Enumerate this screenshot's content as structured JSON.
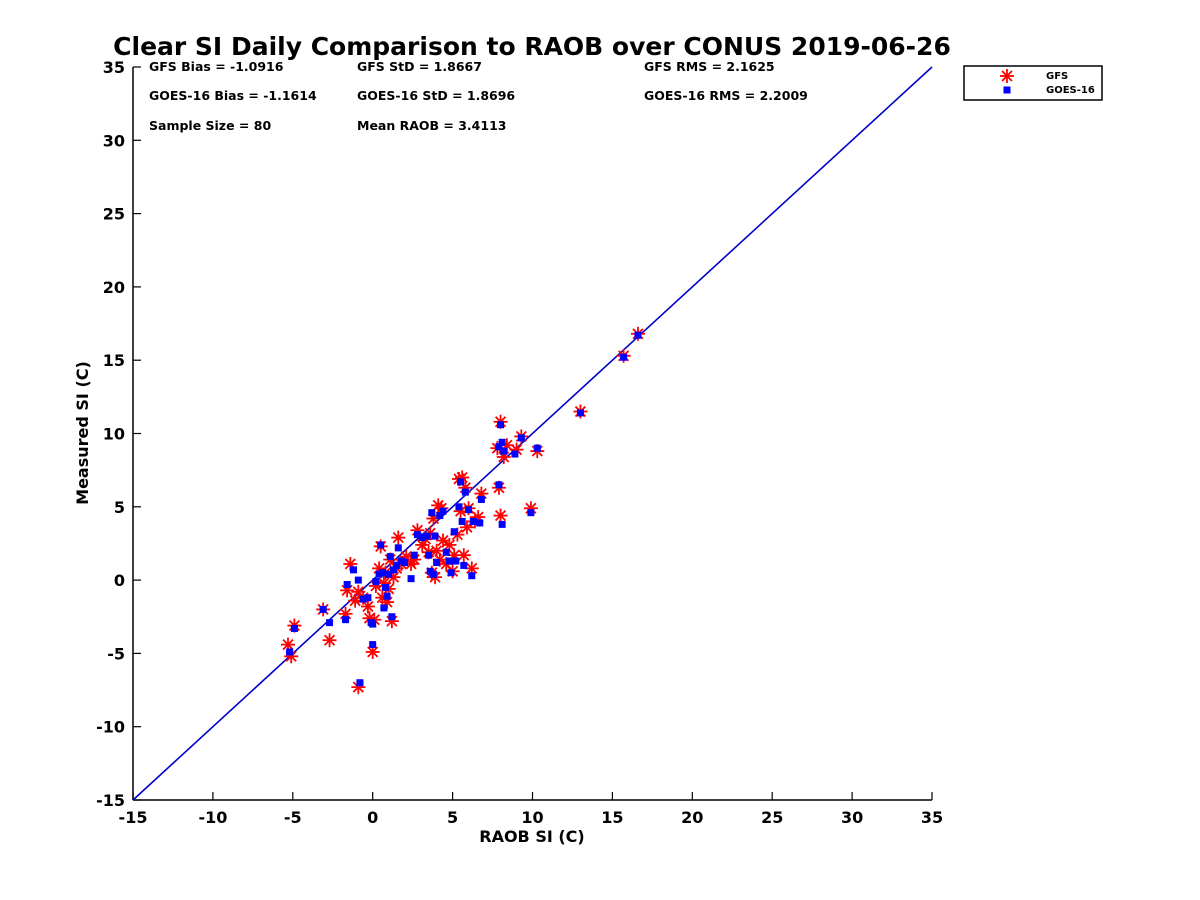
{
  "chart_data": {
    "type": "scatter",
    "title": "Clear SI Daily Comparison to RAOB over CONUS 2019-06-26",
    "xlabel": "RAOB SI (C)",
    "ylabel": "Measured SI (C)",
    "xlim": [
      -15,
      35
    ],
    "ylim": [
      -15,
      35
    ],
    "xticks": [
      -15,
      -10,
      -5,
      0,
      5,
      10,
      15,
      20,
      25,
      30,
      35
    ],
    "yticks": [
      -15,
      -10,
      -5,
      0,
      5,
      10,
      15,
      20,
      25,
      30,
      35
    ],
    "reference_line": {
      "from": [
        -15,
        -15
      ],
      "to": [
        35,
        35
      ],
      "color": "#0000cc"
    },
    "legend": {
      "placement": "outside-top-right",
      "entries": [
        "GFS",
        "GOES-16"
      ]
    },
    "stats": {
      "gfs_bias": "GFS Bias = -1.0916",
      "gfs_std": "GFS StD = 1.8667",
      "gfs_rms": "GFS RMS = 2.1625",
      "goes_bias": "GOES-16 Bias = -1.1614",
      "goes_std": "GOES-16 StD = 1.8696",
      "goes_rms": "GOES-16 RMS = 2.2009",
      "sample_size": "Sample Size = 80",
      "mean_raob": "Mean RAOB = 3.4113"
    },
    "series": [
      {
        "name": "GFS",
        "marker": "asterisk",
        "color": "#ff0000",
        "points": [
          [
            -5.3,
            -4.4
          ],
          [
            -5.1,
            -5.2
          ],
          [
            -4.9,
            -3.1
          ],
          [
            -3.1,
            -2.0
          ],
          [
            -2.7,
            -4.1
          ],
          [
            -1.7,
            -2.3
          ],
          [
            -1.6,
            -0.7
          ],
          [
            -1.4,
            1.1
          ],
          [
            -1.1,
            -1.4
          ],
          [
            -0.9,
            -0.8
          ],
          [
            -0.9,
            -7.3
          ],
          [
            -0.6,
            -1.2
          ],
          [
            -0.3,
            -1.8
          ],
          [
            -0.2,
            -2.6
          ],
          [
            0.0,
            -4.9
          ],
          [
            0.1,
            -2.7
          ],
          [
            0.2,
            -0.4
          ],
          [
            0.4,
            0.8
          ],
          [
            0.5,
            2.3
          ],
          [
            0.6,
            -1.2
          ],
          [
            0.7,
            -0.2
          ],
          [
            0.8,
            0.5
          ],
          [
            0.9,
            -1.5
          ],
          [
            1.0,
            -0.6
          ],
          [
            1.1,
            1.4
          ],
          [
            1.2,
            -2.8
          ],
          [
            1.3,
            0.2
          ],
          [
            1.5,
            0.8
          ],
          [
            1.6,
            2.9
          ],
          [
            1.8,
            1.1
          ],
          [
            2.1,
            1.6
          ],
          [
            2.4,
            1.1
          ],
          [
            2.6,
            1.4
          ],
          [
            2.8,
            3.4
          ],
          [
            3.1,
            2.4
          ],
          [
            3.3,
            2.8
          ],
          [
            3.5,
            1.9
          ],
          [
            3.6,
            3.2
          ],
          [
            3.7,
            0.5
          ],
          [
            3.8,
            4.2
          ],
          [
            3.9,
            0.2
          ],
          [
            4.0,
            2.0
          ],
          [
            4.1,
            5.1
          ],
          [
            4.2,
            1.4
          ],
          [
            4.3,
            4.9
          ],
          [
            4.4,
            2.7
          ],
          [
            4.6,
            1.1
          ],
          [
            4.8,
            2.4
          ],
          [
            5.0,
            0.6
          ],
          [
            5.1,
            1.7
          ],
          [
            5.3,
            3.1
          ],
          [
            5.4,
            6.9
          ],
          [
            5.5,
            4.7
          ],
          [
            5.6,
            7.0
          ],
          [
            5.7,
            1.7
          ],
          [
            5.8,
            6.3
          ],
          [
            5.9,
            3.6
          ],
          [
            6.0,
            4.9
          ],
          [
            6.2,
            0.8
          ],
          [
            6.4,
            4.0
          ],
          [
            6.6,
            4.3
          ],
          [
            6.8,
            5.9
          ],
          [
            7.8,
            9.0
          ],
          [
            7.9,
            6.3
          ],
          [
            8.0,
            4.4
          ],
          [
            8.0,
            10.8
          ],
          [
            8.2,
            8.4
          ],
          [
            8.4,
            9.2
          ],
          [
            9.0,
            8.9
          ],
          [
            9.3,
            9.8
          ],
          [
            9.9,
            4.9
          ],
          [
            10.3,
            8.8
          ],
          [
            13.0,
            11.5
          ],
          [
            15.7,
            15.3
          ],
          [
            16.6,
            16.8
          ]
        ]
      },
      {
        "name": "GOES-16",
        "marker": "square",
        "color": "#0000ff",
        "points": [
          [
            -5.2,
            -4.9
          ],
          [
            -4.9,
            -3.3
          ],
          [
            -3.1,
            -2.0
          ],
          [
            -2.7,
            -2.9
          ],
          [
            -1.7,
            -2.7
          ],
          [
            -1.6,
            -0.3
          ],
          [
            -1.2,
            0.7
          ],
          [
            -0.9,
            0.0
          ],
          [
            -0.8,
            -7.0
          ],
          [
            -0.6,
            -1.3
          ],
          [
            -0.3,
            -1.2
          ],
          [
            -0.1,
            -2.9
          ],
          [
            0.0,
            -4.4
          ],
          [
            0.0,
            -3.0
          ],
          [
            0.2,
            -0.1
          ],
          [
            0.4,
            0.4
          ],
          [
            0.5,
            2.4
          ],
          [
            0.6,
            0.5
          ],
          [
            0.7,
            -1.9
          ],
          [
            0.8,
            -0.5
          ],
          [
            0.9,
            -1.1
          ],
          [
            1.0,
            0.4
          ],
          [
            1.1,
            1.6
          ],
          [
            1.2,
            -2.5
          ],
          [
            1.3,
            0.7
          ],
          [
            1.5,
            1.0
          ],
          [
            1.6,
            2.2
          ],
          [
            1.8,
            1.3
          ],
          [
            2.0,
            1.2
          ],
          [
            2.4,
            0.1
          ],
          [
            2.6,
            1.7
          ],
          [
            2.8,
            3.1
          ],
          [
            3.1,
            2.9
          ],
          [
            3.4,
            3.0
          ],
          [
            3.5,
            1.7
          ],
          [
            3.6,
            0.6
          ],
          [
            3.7,
            4.6
          ],
          [
            3.8,
            0.4
          ],
          [
            3.9,
            3.0
          ],
          [
            4.0,
            1.2
          ],
          [
            4.2,
            4.4
          ],
          [
            4.4,
            4.7
          ],
          [
            4.6,
            1.9
          ],
          [
            4.8,
            1.3
          ],
          [
            4.9,
            0.5
          ],
          [
            5.1,
            3.3
          ],
          [
            5.2,
            1.3
          ],
          [
            5.4,
            5.0
          ],
          [
            5.5,
            6.7
          ],
          [
            5.6,
            4.0
          ],
          [
            5.7,
            1.0
          ],
          [
            5.8,
            6.0
          ],
          [
            6.0,
            4.8
          ],
          [
            6.2,
            0.3
          ],
          [
            6.3,
            4.0
          ],
          [
            6.7,
            3.9
          ],
          [
            6.8,
            5.5
          ],
          [
            7.9,
            9.1
          ],
          [
            7.9,
            6.5
          ],
          [
            8.0,
            10.6
          ],
          [
            8.1,
            3.8
          ],
          [
            8.1,
            9.4
          ],
          [
            8.2,
            8.8
          ],
          [
            8.9,
            8.6
          ],
          [
            9.3,
            9.7
          ],
          [
            9.9,
            4.6
          ],
          [
            10.3,
            9.0
          ],
          [
            13.0,
            11.4
          ],
          [
            15.7,
            15.2
          ],
          [
            16.6,
            16.7
          ]
        ]
      }
    ]
  }
}
